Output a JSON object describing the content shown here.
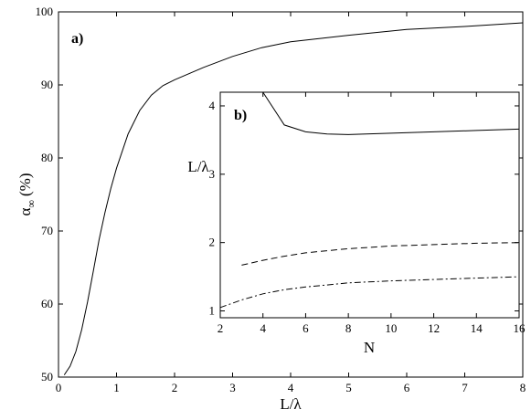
{
  "chart_data": [
    {
      "type": "line",
      "panel_label": "a)",
      "xlabel": "L/λ",
      "ylabel": "α∞ (%)",
      "ylabel_main": "α",
      "ylabel_sub": "∞",
      "ylabel_unit": "(%)",
      "xlim": [
        0,
        8
      ],
      "ylim": [
        50,
        100
      ],
      "xticks": [
        "0",
        "1",
        "2",
        "3",
        "4",
        "5",
        "6",
        "7",
        "8"
      ],
      "yticks": [
        "50",
        "60",
        "70",
        "80",
        "90",
        "100"
      ],
      "grid": false,
      "series": [
        {
          "style": "solid",
          "x": [
            0.1,
            0.2,
            0.3,
            0.4,
            0.5,
            0.6,
            0.7,
            0.8,
            0.9,
            1.0,
            1.2,
            1.4,
            1.6,
            1.8,
            2.0,
            2.5,
            3.0,
            3.5,
            4.0,
            5.0,
            6.0,
            7.0,
            8.0
          ],
          "values": [
            50.3,
            51.5,
            53.5,
            56.5,
            60.3,
            64.5,
            68.8,
            72.5,
            75.8,
            78.6,
            83.3,
            86.5,
            88.6,
            89.9,
            90.7,
            92.4,
            93.9,
            95.1,
            95.9,
            96.8,
            97.6,
            98.0,
            98.5
          ]
        }
      ]
    },
    {
      "type": "line",
      "panel_label": "b)",
      "xlabel": "N",
      "ylabel": "L/λ",
      "xlim": [
        2,
        16
      ],
      "ylim": [
        0.9,
        4.2
      ],
      "xticks": [
        "2",
        "4",
        "6",
        "8",
        "10",
        "12",
        "14",
        "16"
      ],
      "yticks": [
        "1",
        "2",
        "3",
        "4"
      ],
      "grid": false,
      "series": [
        {
          "style": "solid",
          "x": [
            4,
            5,
            6,
            7,
            8,
            10,
            12,
            14,
            16
          ],
          "values": [
            4.2,
            3.72,
            3.62,
            3.59,
            3.58,
            3.6,
            3.62,
            3.64,
            3.66
          ]
        },
        {
          "style": "dashed",
          "x": [
            3,
            4,
            5,
            6,
            7,
            8,
            10,
            12,
            14,
            16
          ],
          "values": [
            1.67,
            1.74,
            1.8,
            1.85,
            1.88,
            1.91,
            1.95,
            1.97,
            1.99,
            2.0
          ]
        },
        {
          "style": "dashdot",
          "x": [
            2,
            3,
            4,
            5,
            6,
            7,
            8,
            10,
            12,
            14,
            16
          ],
          "values": [
            1.05,
            1.16,
            1.25,
            1.31,
            1.35,
            1.38,
            1.41,
            1.44,
            1.46,
            1.48,
            1.5
          ]
        }
      ]
    }
  ]
}
